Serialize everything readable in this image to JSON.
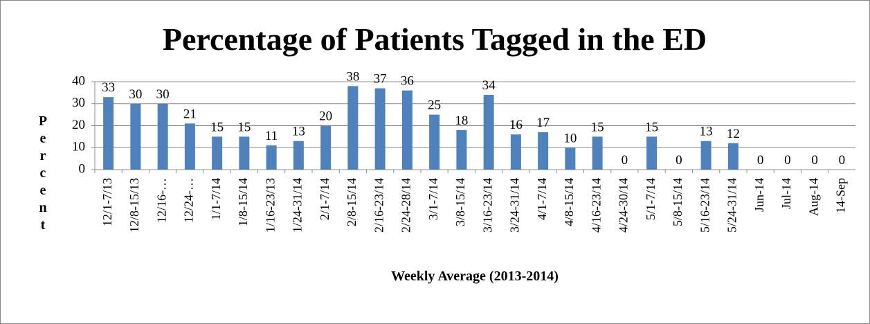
{
  "chart_data": {
    "type": "bar",
    "title": "Percentage of Patients Tagged in the ED",
    "x_label": "Weekly Average (2013-2014)",
    "y_label": "Percent",
    "categories": [
      "12/1-7/13",
      "12/8-15/13",
      "12/16-…",
      "12/24-…",
      "1/1-7/14",
      "1/8-15/14",
      "1/16-23/13",
      "1/24-31/14",
      "2/1-7/14",
      "2/8-15/14",
      "2/16-23/14",
      "2/24-28/14",
      "3/1-7/14",
      "3/8-15/14",
      "3/16-23/14",
      "3/24-31/14",
      "4/1-7/14",
      "4/8-15/14",
      "4/16-23/14",
      "4/24-30/14",
      "5/1-7/14",
      "5/8-15/14",
      "5/16-23/14",
      "5/24-31/14",
      "Jun-14",
      "Jul-14",
      "Aug-14",
      "14-Sep"
    ],
    "values": [
      33,
      30,
      30,
      21,
      15,
      15,
      11,
      13,
      20,
      38,
      37,
      36,
      25,
      18,
      34,
      16,
      17,
      10,
      15,
      0,
      15,
      0,
      13,
      12,
      0,
      0,
      0,
      0
    ],
    "color": "#4f81bd",
    "ylim": [
      0,
      40
    ],
    "yticks": [
      0,
      10,
      20,
      30,
      40
    ],
    "grid": true
  }
}
